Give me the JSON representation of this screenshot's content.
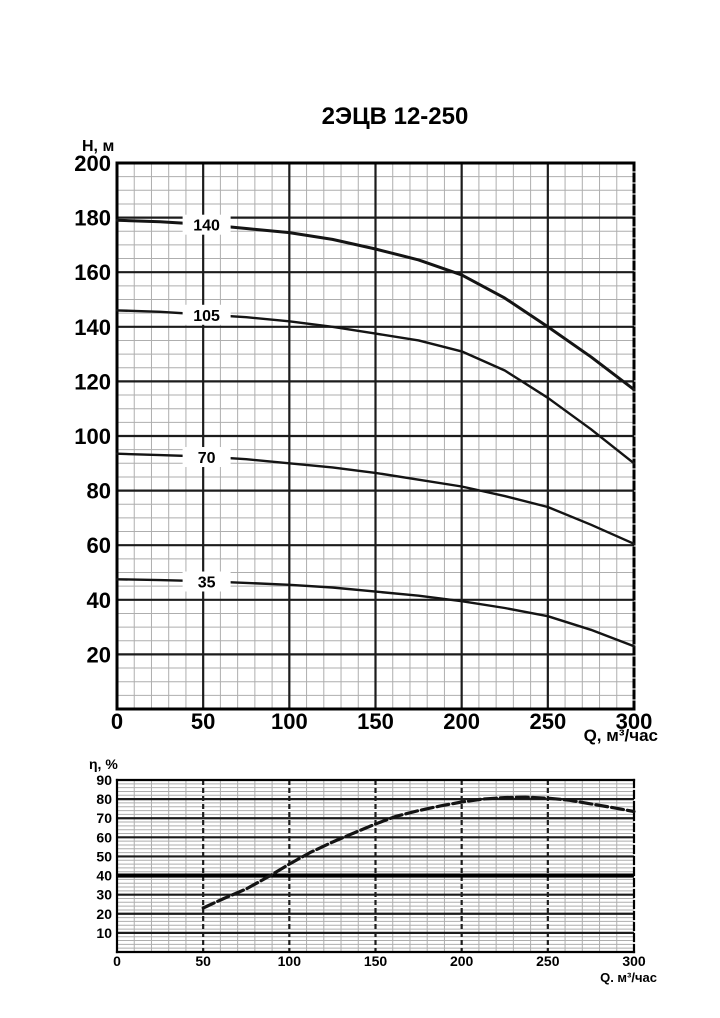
{
  "title": "2ЭЦВ 12-250",
  "colors": {
    "background": "#ffffff",
    "grid_major": "#1c1c1c",
    "grid_minor": "#aeaeae",
    "border": "#000000",
    "curve": "#141414",
    "bold_line": "#000000"
  },
  "chart_data": [
    {
      "type": "line",
      "name": "head-vs-flow",
      "title": "2ЭЦВ 12-250",
      "xlabel": "Q, м³/час",
      "ylabel": "Н, м",
      "xlim": [
        0,
        300
      ],
      "ylim": [
        0,
        200
      ],
      "x_major_step": 50,
      "x_minor_step": 10,
      "y_major_step": 20,
      "y_minor_step": 5,
      "x_ticks": [
        0,
        50,
        100,
        150,
        200,
        250,
        300
      ],
      "y_ticks": [
        20,
        40,
        60,
        80,
        100,
        120,
        140,
        160,
        180,
        200
      ],
      "grid": "on",
      "legend_position": "inline-curve-labels",
      "series": [
        {
          "name": "140",
          "label_x": 52,
          "label_y": 177.4,
          "x": [
            0,
            25,
            50,
            75,
            100,
            125,
            150,
            175,
            200,
            225,
            250,
            275,
            300
          ],
          "y": [
            179,
            178.5,
            177.5,
            176,
            174.5,
            172,
            168.5,
            164.5,
            159,
            150.5,
            140,
            129,
            117
          ]
        },
        {
          "name": "105",
          "label_x": 52,
          "label_y": 144.4,
          "x": [
            0,
            25,
            50,
            75,
            100,
            125,
            150,
            175,
            200,
            225,
            250,
            275,
            300
          ],
          "y": [
            146,
            145.5,
            144.5,
            143.5,
            142,
            140,
            137.5,
            135,
            131,
            124,
            114,
            102.5,
            90
          ]
        },
        {
          "name": "70",
          "label_x": 52,
          "label_y": 92.3,
          "x": [
            0,
            25,
            50,
            75,
            100,
            125,
            150,
            175,
            200,
            225,
            250,
            275,
            300
          ],
          "y": [
            93.5,
            93,
            92.5,
            91.5,
            90,
            88.5,
            86.5,
            84,
            81.5,
            78,
            74,
            67.5,
            60.5
          ]
        },
        {
          "name": "35",
          "label_x": 52,
          "label_y": 46.7,
          "x": [
            0,
            25,
            50,
            75,
            100,
            125,
            150,
            175,
            200,
            225,
            250,
            275,
            300
          ],
          "y": [
            47.5,
            47.2,
            46.8,
            46.2,
            45.5,
            44.5,
            43,
            41.5,
            39.5,
            37,
            34,
            29,
            23
          ]
        }
      ]
    },
    {
      "type": "line",
      "name": "efficiency-vs-flow",
      "title": "",
      "xlabel": "Q. м³/час",
      "ylabel": "η, %",
      "xlim": [
        0,
        300
      ],
      "ylim": [
        0,
        90
      ],
      "x_major_step": 50,
      "x_minor_step": 10,
      "y_major_step": 10,
      "y_minor_step": 2,
      "x_ticks": [
        0,
        50,
        100,
        150,
        200,
        250,
        300
      ],
      "y_ticks": [
        10,
        20,
        30,
        40,
        50,
        60,
        70,
        80,
        90
      ],
      "grid": "on",
      "bold_y_line": 40,
      "series": [
        {
          "name": "η",
          "x": [
            50,
            62,
            75,
            88,
            100,
            112,
            125,
            138,
            150,
            162,
            175,
            188,
            200,
            212,
            225,
            237,
            250,
            262,
            275,
            288,
            300
          ],
          "y": [
            23,
            28,
            33,
            39.5,
            46,
            52,
            57.5,
            62.5,
            67,
            71,
            74,
            76.5,
            78.5,
            80,
            80.8,
            81,
            80.5,
            79.5,
            77.5,
            75.5,
            73.5
          ]
        }
      ]
    }
  ]
}
